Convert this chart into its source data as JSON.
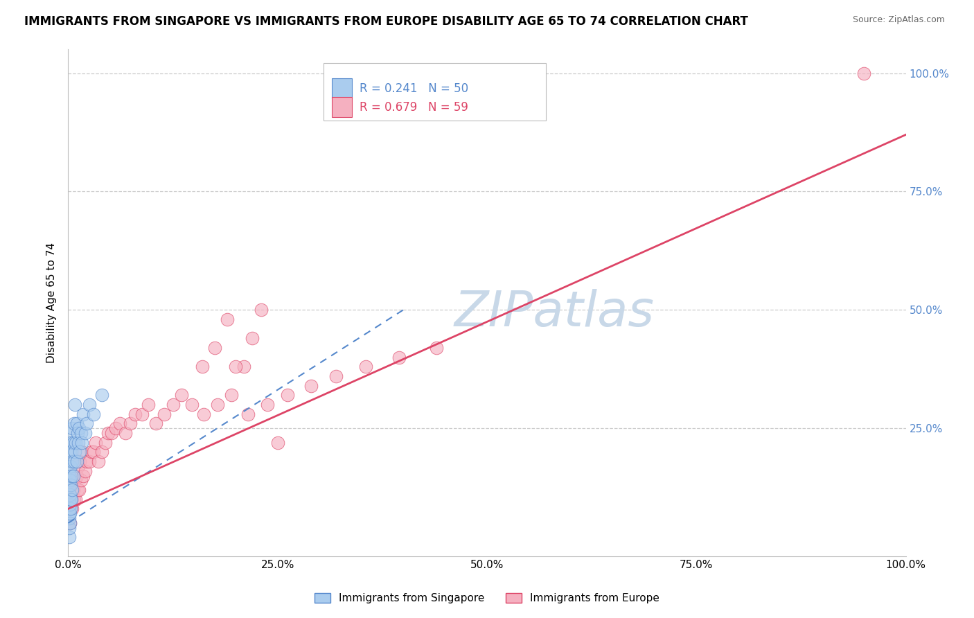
{
  "title": "IMMIGRANTS FROM SINGAPORE VS IMMIGRANTS FROM EUROPE DISABILITY AGE 65 TO 74 CORRELATION CHART",
  "source": "Source: ZipAtlas.com",
  "ylabel": "Disability Age 65 to 74",
  "legend_label_blue": "Immigrants from Singapore",
  "legend_label_pink": "Immigrants from Europe",
  "R_blue": 0.241,
  "N_blue": 50,
  "R_pink": 0.679,
  "N_pink": 59,
  "blue_color": "#aaccee",
  "pink_color": "#f5b0c0",
  "trend_blue_color": "#5588cc",
  "trend_pink_color": "#dd4466",
  "watermark_color": "#c8d8e8",
  "xmin": 0.0,
  "xmax": 1.0,
  "ymin": -0.02,
  "ymax": 1.05,
  "xtick_labels": [
    "0.0%",
    "25.0%",
    "50.0%",
    "75.0%",
    "100.0%"
  ],
  "xtick_vals": [
    0.0,
    0.25,
    0.5,
    0.75,
    1.0
  ],
  "ytick_labels": [
    "25.0%",
    "50.0%",
    "75.0%",
    "100.0%"
  ],
  "ytick_vals": [
    0.25,
    0.5,
    0.75,
    1.0
  ],
  "blue_x": [
    0.001,
    0.001,
    0.001,
    0.001,
    0.001,
    0.001,
    0.001,
    0.001,
    0.001,
    0.001,
    0.002,
    0.002,
    0.002,
    0.002,
    0.002,
    0.002,
    0.002,
    0.002,
    0.003,
    0.003,
    0.003,
    0.003,
    0.003,
    0.004,
    0.004,
    0.004,
    0.005,
    0.005,
    0.005,
    0.006,
    0.006,
    0.007,
    0.007,
    0.008,
    0.008,
    0.009,
    0.01,
    0.01,
    0.011,
    0.012,
    0.013,
    0.014,
    0.015,
    0.016,
    0.018,
    0.02,
    0.022,
    0.025,
    0.03,
    0.04
  ],
  "blue_y": [
    0.02,
    0.04,
    0.06,
    0.07,
    0.08,
    0.09,
    0.1,
    0.11,
    0.13,
    0.15,
    0.05,
    0.07,
    0.09,
    0.11,
    0.14,
    0.17,
    0.2,
    0.24,
    0.08,
    0.1,
    0.13,
    0.17,
    0.22,
    0.1,
    0.15,
    0.2,
    0.12,
    0.18,
    0.25,
    0.15,
    0.22,
    0.18,
    0.26,
    0.2,
    0.3,
    0.22,
    0.18,
    0.26,
    0.24,
    0.22,
    0.25,
    0.2,
    0.24,
    0.22,
    0.28,
    0.24,
    0.26,
    0.3,
    0.28,
    0.32
  ],
  "pink_x": [
    0.002,
    0.003,
    0.004,
    0.005,
    0.006,
    0.007,
    0.008,
    0.009,
    0.01,
    0.011,
    0.012,
    0.013,
    0.014,
    0.015,
    0.016,
    0.018,
    0.02,
    0.022,
    0.025,
    0.028,
    0.03,
    0.033,
    0.036,
    0.04,
    0.044,
    0.048,
    0.052,
    0.057,
    0.062,
    0.068,
    0.074,
    0.08,
    0.088,
    0.096,
    0.105,
    0.115,
    0.125,
    0.135,
    0.148,
    0.162,
    0.178,
    0.195,
    0.215,
    0.238,
    0.262,
    0.29,
    0.32,
    0.355,
    0.395,
    0.44,
    0.19,
    0.21,
    0.23,
    0.16,
    0.175,
    0.2,
    0.22,
    0.25,
    0.95
  ],
  "pink_y": [
    0.05,
    0.08,
    0.1,
    0.08,
    0.12,
    0.1,
    0.14,
    0.1,
    0.15,
    0.12,
    0.17,
    0.12,
    0.18,
    0.14,
    0.2,
    0.15,
    0.16,
    0.18,
    0.18,
    0.2,
    0.2,
    0.22,
    0.18,
    0.2,
    0.22,
    0.24,
    0.24,
    0.25,
    0.26,
    0.24,
    0.26,
    0.28,
    0.28,
    0.3,
    0.26,
    0.28,
    0.3,
    0.32,
    0.3,
    0.28,
    0.3,
    0.32,
    0.28,
    0.3,
    0.32,
    0.34,
    0.36,
    0.38,
    0.4,
    0.42,
    0.48,
    0.38,
    0.5,
    0.38,
    0.42,
    0.38,
    0.44,
    0.22,
    1.0
  ],
  "blue_trend_x0": 0.0,
  "blue_trend_x1": 0.4,
  "blue_trend_y0": 0.05,
  "blue_trend_y1": 0.5,
  "pink_trend_x0": 0.0,
  "pink_trend_x1": 1.0,
  "pink_trend_y0": 0.08,
  "pink_trend_y1": 0.87,
  "background_color": "#ffffff",
  "grid_color": "#cccccc",
  "title_fontsize": 12,
  "axis_label_fontsize": 11,
  "tick_fontsize": 11,
  "legend_fontsize": 12,
  "watermark_fontsize": 52
}
